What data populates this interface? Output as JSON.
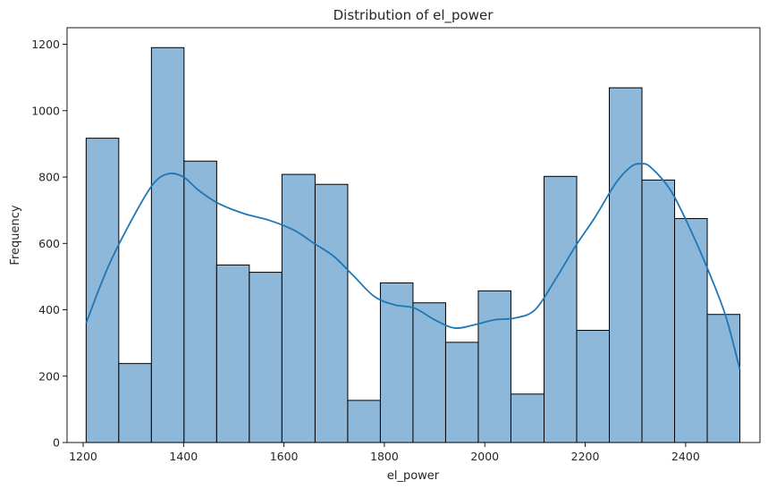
{
  "chart_data": {
    "type": "histogram",
    "title": "Distribution of el_power",
    "xlabel": "el_power",
    "ylabel": "Frequency",
    "xlim": [
      1168,
      2548
    ],
    "ylim": [
      0,
      1250
    ],
    "x_ticks": [
      1200,
      1400,
      1600,
      1800,
      2000,
      2200,
      2400
    ],
    "y_ticks": [
      0,
      200,
      400,
      600,
      800,
      1000,
      1200
    ],
    "bin_edges": [
      1206,
      1271,
      1336,
      1401,
      1466,
      1531,
      1596,
      1662,
      1727,
      1792,
      1857,
      1922,
      1987,
      2052,
      2118,
      2183,
      2248,
      2313,
      2378,
      2443,
      2508
    ],
    "values": [
      917,
      238,
      1190,
      848,
      535,
      513,
      808,
      778,
      127,
      481,
      421,
      302,
      457,
      146,
      802,
      338,
      1069,
      791,
      675,
      386
    ],
    "bar_color": "#8DB8DA",
    "edge_color": "#000000",
    "kde": {
      "color": "#1F77B4",
      "x": [
        1206,
        1250,
        1300,
        1340,
        1370,
        1400,
        1430,
        1470,
        1520,
        1570,
        1620,
        1660,
        1700,
        1740,
        1780,
        1820,
        1860,
        1900,
        1940,
        1980,
        2020,
        2060,
        2100,
        2140,
        2180,
        2220,
        2260,
        2290,
        2310,
        2330,
        2370,
        2410,
        2450,
        2480,
        2508
      ],
      "y": [
        360,
        530,
        680,
        780,
        810,
        800,
        760,
        720,
        690,
        670,
        640,
        600,
        560,
        500,
        440,
        415,
        405,
        370,
        345,
        355,
        370,
        375,
        400,
        490,
        590,
        680,
        780,
        830,
        840,
        830,
        760,
        640,
        500,
        380,
        220
      ]
    },
    "grid": false,
    "legend": "none"
  }
}
